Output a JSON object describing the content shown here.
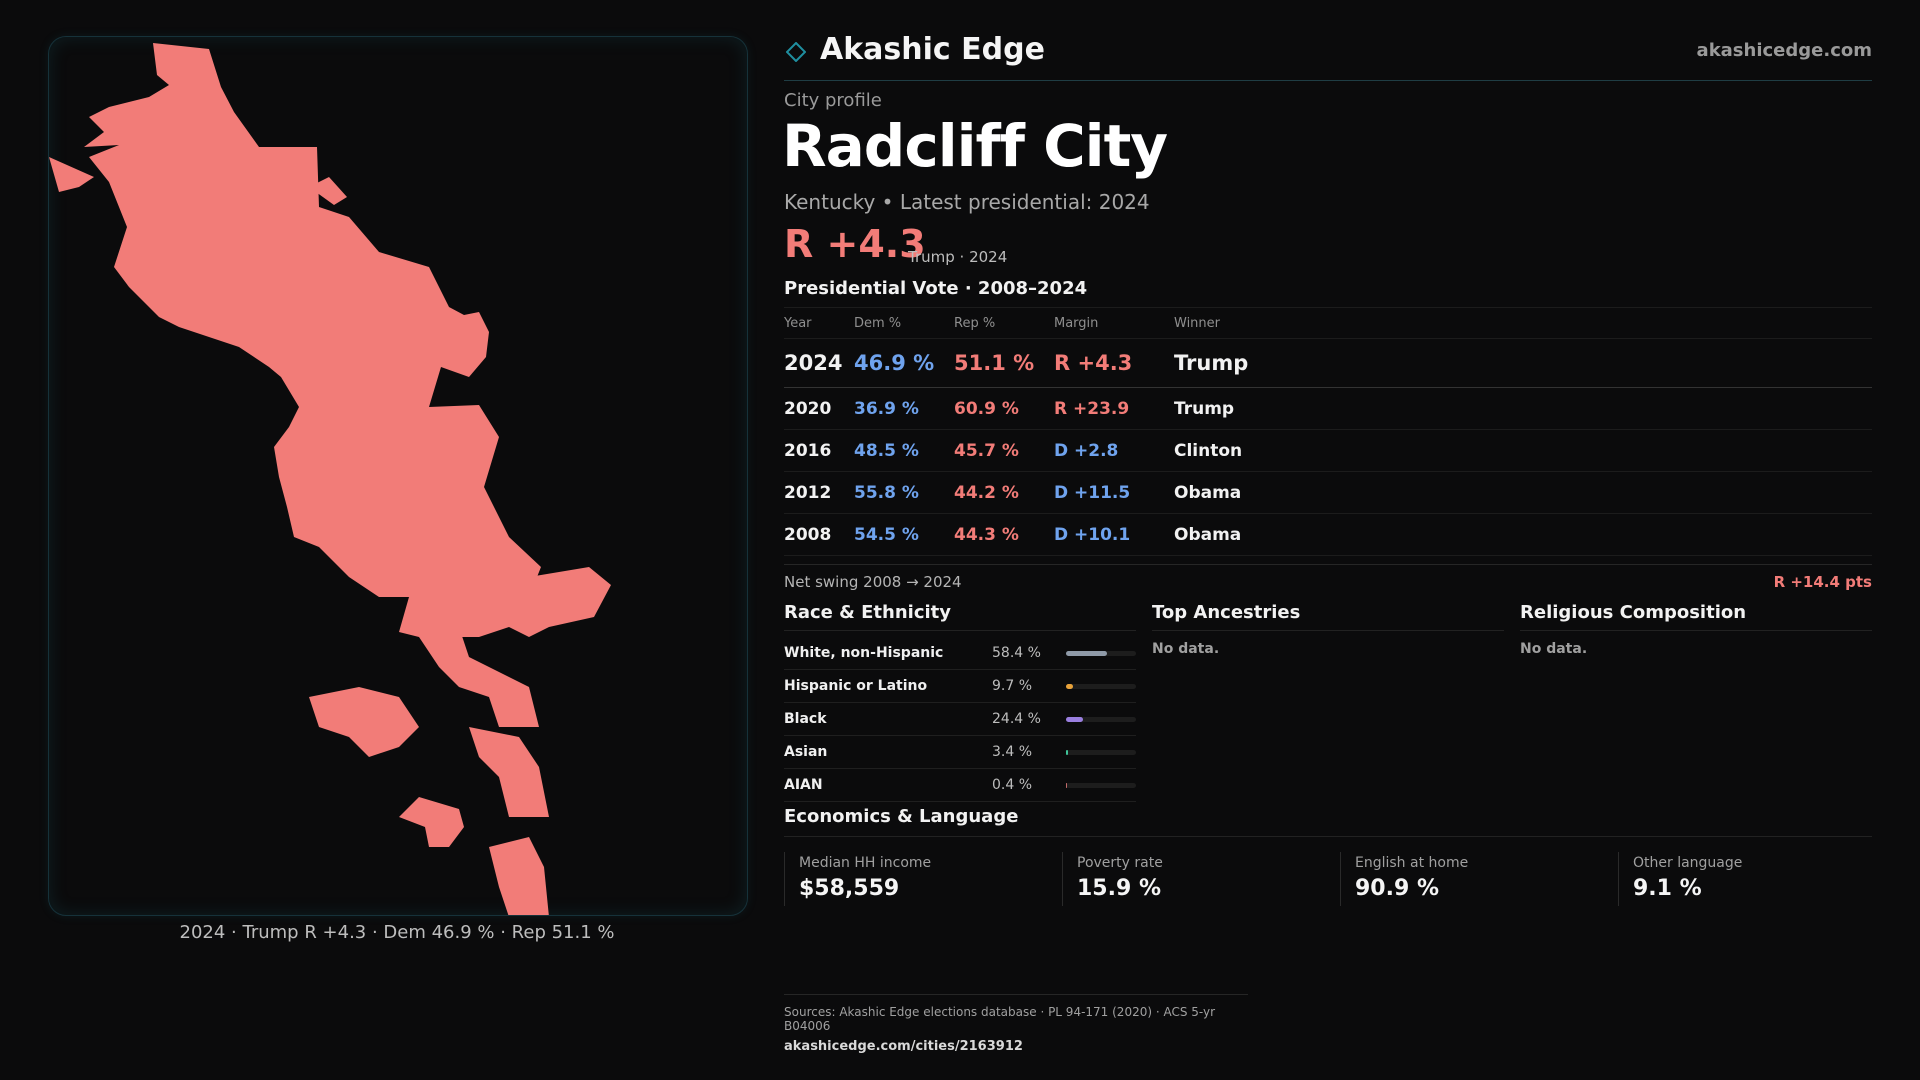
{
  "brand": {
    "name": "Akashic Edge",
    "url": "akashicedge.com"
  },
  "profile": {
    "kicker": "City profile",
    "title": "Radcliff City",
    "subtitle": "Kentucky • Latest presidential: 2024",
    "headline_margin": "R +4.3",
    "headline_note": "Trump · 2024"
  },
  "map": {
    "caption": "2024 · Trump R +4.3 · Dem 46.9 % · Rep 51.1 %",
    "fill_color": "#f27c78"
  },
  "presidential": {
    "title": "Presidential Vote · 2008–2024",
    "headers": [
      "Year",
      "Dem %",
      "Rep %",
      "Margin",
      "Winner"
    ],
    "rows": [
      {
        "year": "2024",
        "dem": "46.9 %",
        "rep": "51.1 %",
        "margin": "R +4.3",
        "party": "R",
        "winner": "Trump"
      },
      {
        "year": "2020",
        "dem": "36.9 %",
        "rep": "60.9 %",
        "margin": "R +23.9",
        "party": "R",
        "winner": "Trump"
      },
      {
        "year": "2016",
        "dem": "48.5 %",
        "rep": "45.7 %",
        "margin": "D +2.8",
        "party": "D",
        "winner": "Clinton"
      },
      {
        "year": "2012",
        "dem": "55.8 %",
        "rep": "44.2 %",
        "margin": "D +11.5",
        "party": "D",
        "winner": "Obama"
      },
      {
        "year": "2008",
        "dem": "54.5 %",
        "rep": "44.3 %",
        "margin": "D +10.1",
        "party": "D",
        "winner": "Obama"
      }
    ],
    "swing_label": "Net swing 2008 → 2024",
    "swing_value": "R +14.4 pts"
  },
  "race": {
    "title": "Race & Ethnicity",
    "rows": [
      {
        "name": "White, non-Hispanic",
        "pct": "58.4 %",
        "value": 58.4,
        "color": "#8f9aa8"
      },
      {
        "name": "Hispanic or Latino",
        "pct": "9.7 %",
        "value": 9.7,
        "color": "#e8a23a"
      },
      {
        "name": "Black",
        "pct": "24.4 %",
        "value": 24.4,
        "color": "#9a7fe0"
      },
      {
        "name": "Asian",
        "pct": "3.4 %",
        "value": 3.4,
        "color": "#3fc59a"
      },
      {
        "name": "AIAN",
        "pct": "0.4 %",
        "value": 0.4,
        "color": "#c26a6a"
      }
    ]
  },
  "ancestries": {
    "title": "Top Ancestries",
    "empty": "No data."
  },
  "religion": {
    "title": "Religious Composition",
    "empty": "No data."
  },
  "economics": {
    "title": "Economics & Language",
    "cards": [
      {
        "label": "Median HH income",
        "value": "$58,559"
      },
      {
        "label": "Poverty rate",
        "value": "15.9 %"
      },
      {
        "label": "English at home",
        "value": "90.9 %"
      },
      {
        "label": "Other language",
        "value": "9.1 %"
      }
    ]
  },
  "footer": {
    "sources": "Sources: Akashic Edge elections database · PL 94-171 (2020) · ACS 5-yr B04006",
    "url": "akashicedge.com/cities/2163912"
  }
}
